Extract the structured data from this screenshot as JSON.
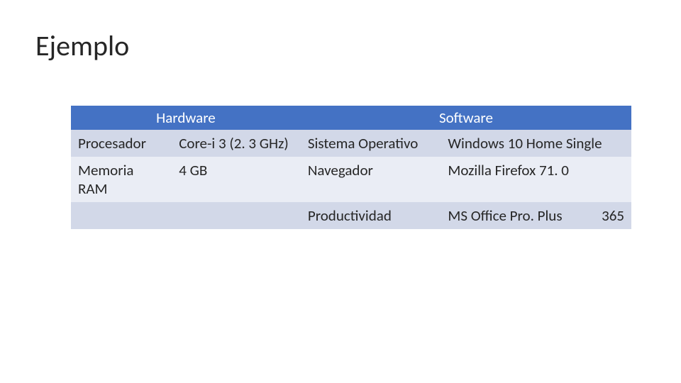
{
  "title": "Ejemplo",
  "table": {
    "type": "table",
    "headers": [
      "Hardware",
      "Software"
    ],
    "header_bg": "#4472c4",
    "header_text_color": "#ffffff",
    "row_alt_bg_1": "#d2d8e8",
    "row_alt_bg_2": "#eaedf5",
    "text_color": "#262626",
    "font_size": 21,
    "rows": [
      {
        "hw_label": "Procesador",
        "hw_value": "Core-i 3 (2. 3 GHz)",
        "sw_label": "Sistema Operativo",
        "sw_value": "Windows 10 Home Single"
      },
      {
        "hw_label": "Memoria RAM",
        "hw_value": "4 GB",
        "sw_label": "Navegador",
        "sw_value": "Mozilla Firefox 71. 0"
      },
      {
        "hw_label": "",
        "hw_value": "",
        "sw_label": "Productividad",
        "sw_value_left": "MS Office Pro. Plus",
        "sw_value_right": "365"
      }
    ]
  }
}
